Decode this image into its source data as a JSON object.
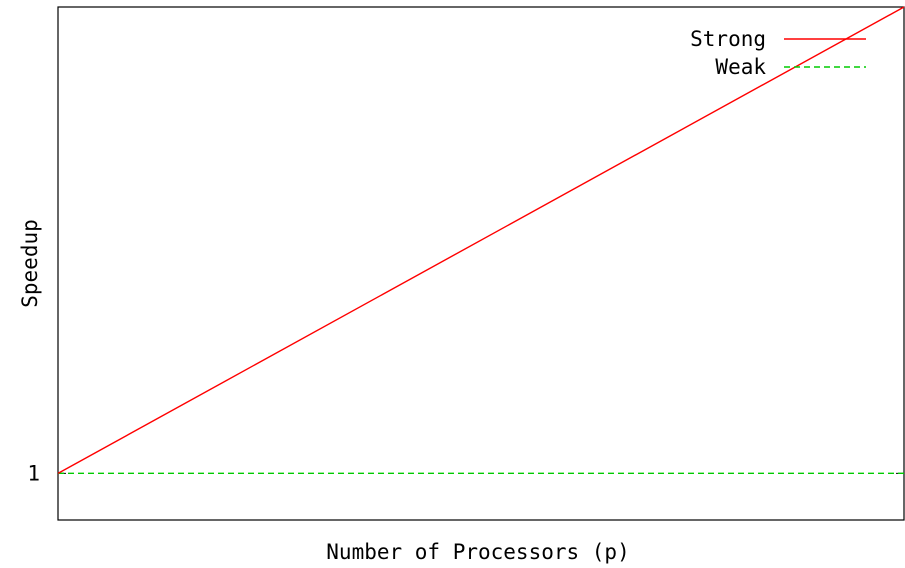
{
  "chart_data": {
    "type": "line",
    "title": "",
    "xlabel": "Number of Processors (p)",
    "ylabel": "Speedup",
    "y_ticks": [
      {
        "value": 1,
        "label": "1"
      }
    ],
    "x_ticks": [],
    "xlim": [
      0,
      1
    ],
    "ylim": [
      0,
      11
    ],
    "grid": false,
    "legend_position": "top-right",
    "series": [
      {
        "name": "Strong",
        "color": "#ff0000",
        "line_style": "solid",
        "x": [
          0,
          1
        ],
        "y": [
          1,
          11
        ]
      },
      {
        "name": "Weak",
        "color": "#00cc00",
        "line_style": "dashed",
        "x": [
          0,
          1
        ],
        "y": [
          1,
          1
        ]
      }
    ]
  }
}
